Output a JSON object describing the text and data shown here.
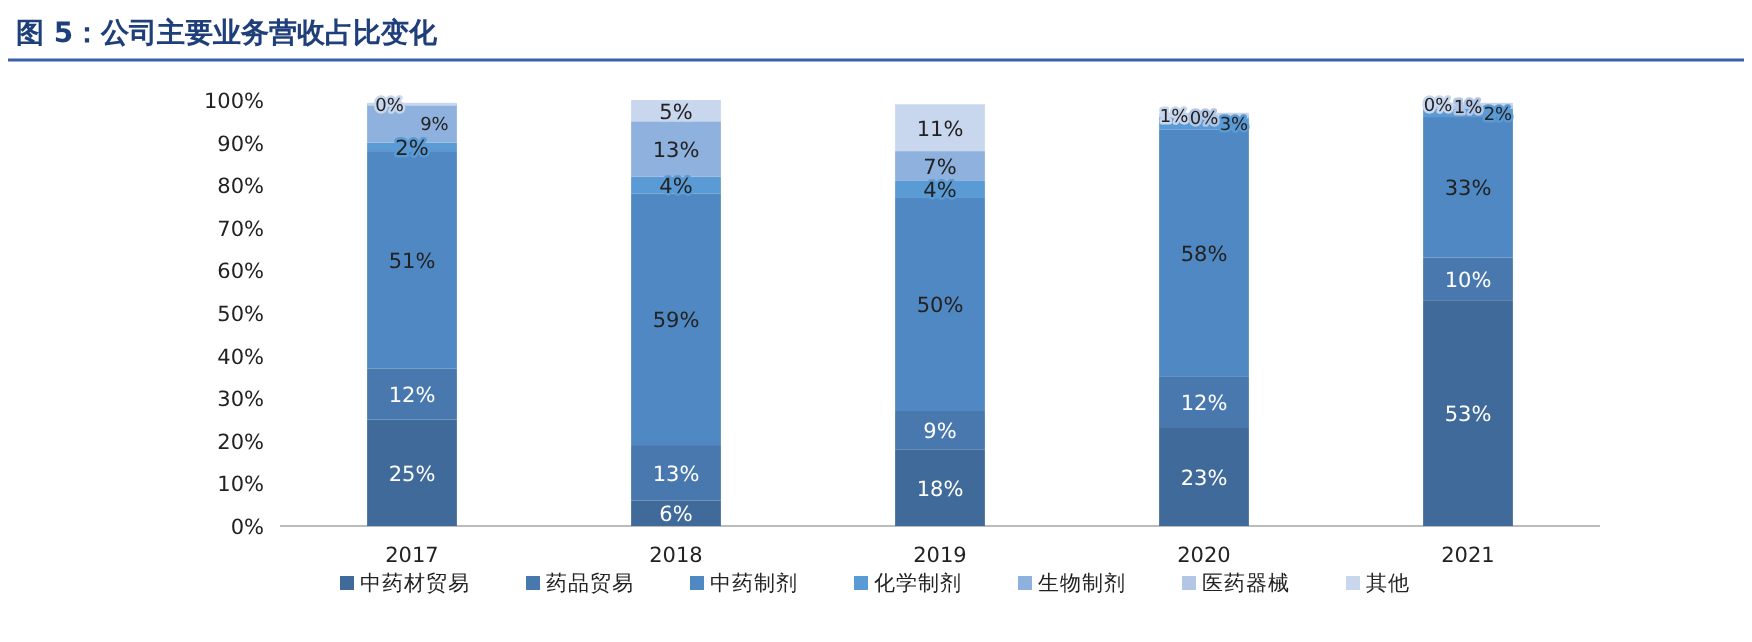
{
  "chart_data": {
    "type": "bar",
    "stacked": true,
    "title": "图 5：公司主要业务营收占比变化",
    "categories": [
      "2017",
      "2018",
      "2019",
      "2020",
      "2021"
    ],
    "ylim": [
      0,
      100
    ],
    "yticks": [
      {
        "value": 0,
        "label": "0%"
      },
      {
        "value": 10,
        "label": "10%"
      },
      {
        "value": 20,
        "label": "20%"
      },
      {
        "value": 30,
        "label": "30%"
      },
      {
        "value": 40,
        "label": "40%"
      },
      {
        "value": 50,
        "label": "50%"
      },
      {
        "value": 60,
        "label": "60%"
      },
      {
        "value": 70,
        "label": "70%"
      },
      {
        "value": 80,
        "label": "80%"
      },
      {
        "value": 90,
        "label": "90%"
      },
      {
        "value": 100,
        "label": "100%"
      }
    ],
    "grid": false,
    "legend": "bottom",
    "series": [
      {
        "name": "中药材贸易",
        "color": "#3f6a99",
        "values": [
          25,
          6,
          18,
          23,
          53
        ],
        "value_labels": [
          "25%",
          "6%",
          "18%",
          "23%",
          "53%"
        ]
      },
      {
        "name": "药品贸易",
        "color": "#4878ae",
        "values": [
          12,
          13,
          9,
          12,
          10
        ],
        "value_labels": [
          "12%",
          "13%",
          "9%",
          "12%",
          "10%"
        ]
      },
      {
        "name": "中药制剂",
        "color": "#4f88c2",
        "values": [
          51,
          59,
          50,
          58,
          33
        ],
        "value_labels": [
          "51%",
          "59%",
          "50%",
          "58%",
          "33%"
        ]
      },
      {
        "name": "化学制剂",
        "color": "#5b9bd5",
        "values": [
          2,
          4,
          4,
          3,
          2
        ],
        "value_labels": [
          "2%",
          "4%",
          "4%",
          "3%",
          "2%"
        ]
      },
      {
        "name": "生物制剂",
        "color": "#8eb1de",
        "values": [
          9,
          13,
          7,
          null,
          null
        ],
        "value_labels": [
          "9%",
          "13%",
          "7%",
          null,
          null
        ]
      },
      {
        "name": "医药器械",
        "color": "#b2c6e6",
        "values": [
          null,
          null,
          null,
          0,
          1
        ],
        "value_labels": [
          null,
          null,
          null,
          "0%",
          "1%"
        ]
      },
      {
        "name": "其他",
        "color": "#c8d7ee",
        "values": [
          0,
          5,
          11,
          1,
          0
        ],
        "value_labels": [
          "0%",
          "5%",
          "11%",
          "1%",
          "0%"
        ]
      }
    ]
  }
}
